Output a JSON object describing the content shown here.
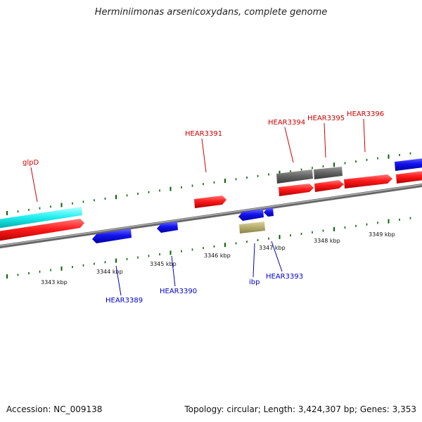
{
  "title": "Herminiimonas arsenicoxydans, complete genome",
  "footer": {
    "accession": "Accession: NC_009138",
    "summary": "Topology: circular; Length: 3,424,307 bp; Genes: 3,353"
  },
  "colors": {
    "forward_strand": "#ff0000",
    "reverse_strand": "#0000ee",
    "forward_label": "#cc0000",
    "reverse_label": "#0000cc",
    "rna": "#00ffff",
    "pseudo": "#666666",
    "other": "#b8b070",
    "backbone": "#888888",
    "ticks": "#006600"
  },
  "scale_labels": [
    "3343 kbp",
    "3344 kbp",
    "3345 kbp",
    "3346 kbp",
    "3347 kbp",
    "3348 kbp",
    "3349 kbp"
  ],
  "gene_labels": {
    "glpD": "glpD",
    "HEAR3391": "HEAR3391",
    "HEAR3394": "HEAR3394",
    "HEAR3395": "HEAR3395",
    "HEAR3396": "HEAR3396",
    "HEAR3389": "HEAR3389",
    "HEAR3390": "HEAR3390",
    "ibp": "ibp",
    "HEAR3393": "HEAR3393"
  }
}
